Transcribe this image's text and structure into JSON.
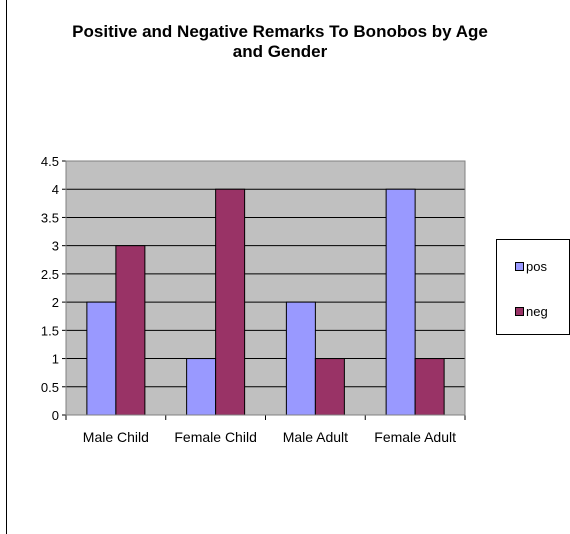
{
  "chart_data": {
    "type": "bar",
    "title": "Positive and Negative Remarks To Bonobos by Age and Gender",
    "categories": [
      "Male Child",
      "Female Child",
      "Male Adult",
      "Female Adult"
    ],
    "series": [
      {
        "name": "pos",
        "values": [
          2,
          1,
          2,
          4
        ],
        "color": "#9999ff"
      },
      {
        "name": "neg",
        "values": [
          3,
          4,
          1,
          1
        ],
        "color": "#993366"
      }
    ],
    "ylim": [
      0,
      4.5
    ],
    "yticks": [
      "0",
      "0.5",
      "1",
      "1.5",
      "2",
      "2.5",
      "3",
      "3.5",
      "4",
      "4.5"
    ],
    "grid": true,
    "legend_position": "right",
    "plot_background": "#c0c0c0"
  }
}
